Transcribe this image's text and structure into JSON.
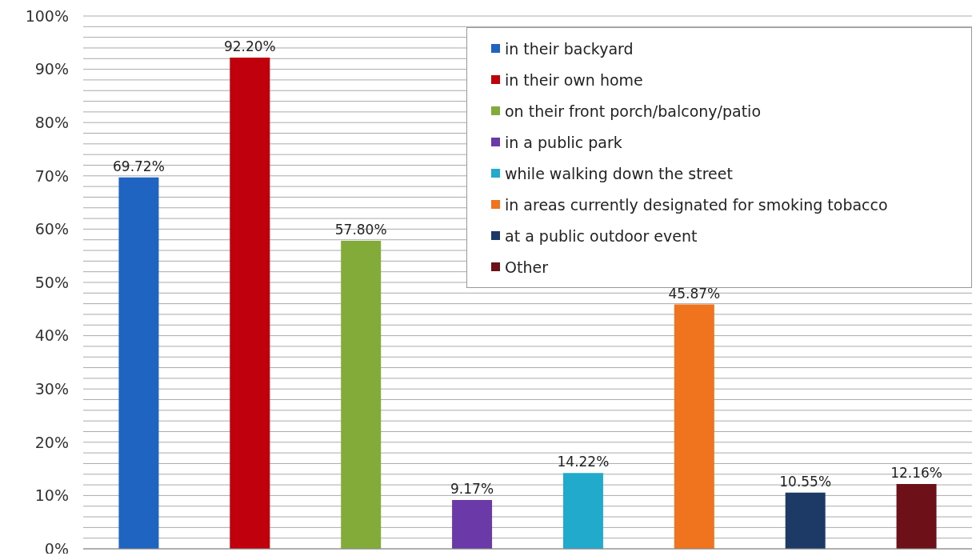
{
  "chart_data": {
    "type": "bar",
    "categories": [
      null,
      null,
      null,
      null,
      null,
      null,
      null,
      null
    ],
    "series": [
      {
        "name": "in their backyard",
        "color": "#1f64c0",
        "values": [
          69.72,
          null,
          null,
          null,
          null,
          null,
          null,
          null
        ],
        "value_labels": [
          "69.72%",
          null,
          null,
          null,
          null,
          null,
          null,
          null
        ]
      },
      {
        "name": "in their own home",
        "color": "#c0000d",
        "values": [
          null,
          92.2,
          null,
          null,
          null,
          null,
          null,
          null
        ],
        "value_labels": [
          null,
          "92.20%",
          null,
          null,
          null,
          null,
          null,
          null
        ]
      },
      {
        "name": "on their front porch/balcony/patio",
        "color": "#82ab3a",
        "values": [
          null,
          null,
          57.8,
          null,
          null,
          null,
          null,
          null
        ],
        "value_labels": [
          null,
          null,
          "57.80%",
          null,
          null,
          null,
          null,
          null
        ]
      },
      {
        "name": "in a public park",
        "color": "#6b3aa8",
        "values": [
          null,
          null,
          null,
          9.17,
          null,
          null,
          null,
          null
        ],
        "value_labels": [
          null,
          null,
          null,
          "9.17%",
          null,
          null,
          null,
          null
        ]
      },
      {
        "name": "while walking down the street",
        "color": "#22aacc",
        "values": [
          null,
          null,
          null,
          null,
          14.22,
          null,
          null,
          null
        ],
        "value_labels": [
          null,
          null,
          null,
          null,
          "14.22%",
          null,
          null,
          null
        ]
      },
      {
        "name": "in areas currently designated for smoking tobacco",
        "color": "#f0731e",
        "values": [
          null,
          null,
          null,
          null,
          null,
          45.87,
          null,
          null
        ],
        "value_labels": [
          null,
          null,
          null,
          null,
          null,
          "45.87%",
          null,
          null
        ]
      },
      {
        "name": "at a public outdoor event",
        "color": "#1d3a66",
        "values": [
          null,
          null,
          null,
          null,
          null,
          null,
          10.55,
          null
        ],
        "value_labels": [
          null,
          null,
          null,
          null,
          null,
          null,
          "10.55%",
          null
        ]
      },
      {
        "name": "Other",
        "color": "#6e1018",
        "values": [
          null,
          null,
          null,
          null,
          null,
          null,
          null,
          12.16
        ],
        "value_labels": [
          null,
          null,
          null,
          null,
          null,
          null,
          null,
          "12.16%"
        ]
      }
    ],
    "ylim": [
      0,
      100
    ],
    "yticks": [
      {
        "value": 0,
        "label": "0%"
      },
      {
        "value": 2,
        "label": null
      },
      {
        "value": 4,
        "label": null
      },
      {
        "value": 6,
        "label": null
      },
      {
        "value": 8,
        "label": null
      },
      {
        "value": 10,
        "label": "10%"
      },
      {
        "value": 12,
        "label": null
      },
      {
        "value": 14,
        "label": null
      },
      {
        "value": 16,
        "label": null
      },
      {
        "value": 18,
        "label": null
      },
      {
        "value": 20,
        "label": "20%"
      },
      {
        "value": 22,
        "label": null
      },
      {
        "value": 24,
        "label": null
      },
      {
        "value": 26,
        "label": null
      },
      {
        "value": 28,
        "label": null
      },
      {
        "value": 30,
        "label": "30%"
      },
      {
        "value": 32,
        "label": null
      },
      {
        "value": 34,
        "label": null
      },
      {
        "value": 36,
        "label": null
      },
      {
        "value": 38,
        "label": null
      },
      {
        "value": 40,
        "label": "40%"
      },
      {
        "value": 42,
        "label": null
      },
      {
        "value": 44,
        "label": null
      },
      {
        "value": 46,
        "label": null
      },
      {
        "value": 48,
        "label": null
      },
      {
        "value": 50,
        "label": "50%"
      },
      {
        "value": 52,
        "label": null
      },
      {
        "value": 54,
        "label": null
      },
      {
        "value": 56,
        "label": null
      },
      {
        "value": 58,
        "label": null
      },
      {
        "value": 60,
        "label": "60%"
      },
      {
        "value": 62,
        "label": null
      },
      {
        "value": 64,
        "label": null
      },
      {
        "value": 66,
        "label": null
      },
      {
        "value": 68,
        "label": null
      },
      {
        "value": 70,
        "label": "70%"
      },
      {
        "value": 72,
        "label": null
      },
      {
        "value": 74,
        "label": null
      },
      {
        "value": 76,
        "label": null
      },
      {
        "value": 78,
        "label": null
      },
      {
        "value": 80,
        "label": "80%"
      },
      {
        "value": 82,
        "label": null
      },
      {
        "value": 84,
        "label": null
      },
      {
        "value": 86,
        "label": null
      },
      {
        "value": 88,
        "label": null
      },
      {
        "value": 90,
        "label": "90%"
      },
      {
        "value": 92,
        "label": null
      },
      {
        "value": 94,
        "label": null
      },
      {
        "value": 96,
        "label": null
      },
      {
        "value": 98,
        "label": null
      },
      {
        "value": 100,
        "label": "100%"
      }
    ],
    "grid": "y",
    "legend": "top right",
    "tick_labels": "y"
  }
}
